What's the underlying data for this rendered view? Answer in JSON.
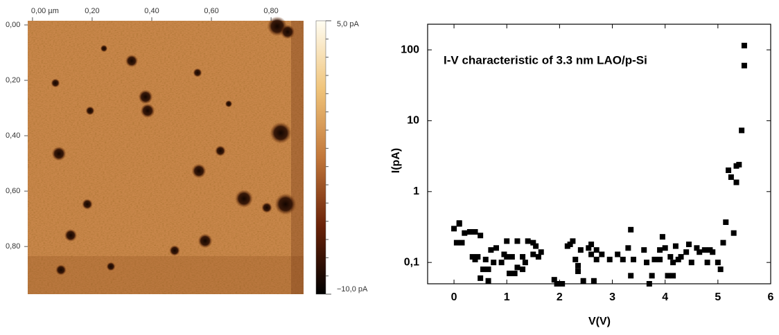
{
  "chart_data": [
    {
      "type": "image",
      "xlim": [
        -0.016,
        0.909
      ],
      "ylim": [
        -0.015,
        0.972
      ],
      "y_inverted": true,
      "xticks": [
        {
          "value": 0,
          "label": "0,00 µm"
        },
        {
          "value": 0.2,
          "label": "0,20"
        },
        {
          "value": 0.4,
          "label": "0,40"
        },
        {
          "value": 0.6,
          "label": "0,60"
        },
        {
          "value": 0.8,
          "label": "0,80"
        }
      ],
      "yticks": [
        {
          "value": 0,
          "label": "0,00"
        },
        {
          "value": 0.2,
          "label": "0,20"
        },
        {
          "value": 0.4,
          "label": "0,40"
        },
        {
          "value": 0.6,
          "label": "0,60"
        },
        {
          "value": 0.8,
          "label": "0,80"
        }
      ],
      "colorbar": {
        "lim": [
          -10,
          5
        ],
        "ticks": [
          {
            "value": 5,
            "label": "5,0 pA"
          },
          {
            "value": -10,
            "label": "−10,0 pA"
          }
        ]
      }
    },
    {
      "type": "scatter",
      "title": "I-V characteristic of 3.3 nm LAO/p-Si",
      "x_label": "V(V)",
      "y_label": "I(pA)",
      "color": "#000000",
      "log_y": true,
      "xlim": [
        -0.5,
        6
      ],
      "ylim": [
        0.05,
        230
      ],
      "xticks": [
        0,
        1,
        2,
        3,
        4,
        5,
        6
      ],
      "yticks": [
        {
          "value": 0.1,
          "label": "0,1"
        },
        1,
        10,
        100
      ],
      "x": [
        0.0,
        0.05,
        0.1,
        0.1,
        0.15,
        0.2,
        0.3,
        0.35,
        0.4,
        0.4,
        0.45,
        0.5,
        0.5,
        0.55,
        0.6,
        0.65,
        0.65,
        0.7,
        0.75,
        0.8,
        0.9,
        0.95,
        1.0,
        1.0,
        1.05,
        1.1,
        1.15,
        1.2,
        1.2,
        1.3,
        1.3,
        1.35,
        1.4,
        1.5,
        1.5,
        1.55,
        1.6,
        1.65,
        1.9,
        1.95,
        2.05,
        2.15,
        2.2,
        2.25,
        2.3,
        2.35,
        2.35,
        2.4,
        2.45,
        2.55,
        2.6,
        2.6,
        2.65,
        2.7,
        2.7,
        2.8,
        2.95,
        3.1,
        3.2,
        3.3,
        3.35,
        3.35,
        3.4,
        3.6,
        3.65,
        3.7,
        3.75,
        3.8,
        3.9,
        3.9,
        3.95,
        4.0,
        4.05,
        4.1,
        4.15,
        4.15,
        4.2,
        4.25,
        4.3,
        4.4,
        4.45,
        4.5,
        4.6,
        4.65,
        4.75,
        4.8,
        4.85,
        4.9,
        5.0,
        5.05,
        5.1,
        5.15,
        5.2,
        5.25,
        5.3,
        5.35,
        5.35,
        5.4,
        5.45,
        5.5,
        5.5
      ],
      "values": [
        0.3,
        0.19,
        0.35,
        0.36,
        0.19,
        0.26,
        0.27,
        0.12,
        0.27,
        0.11,
        0.12,
        0.24,
        0.06,
        0.08,
        0.11,
        0.055,
        0.08,
        0.15,
        0.1,
        0.16,
        0.1,
        0.13,
        0.2,
        0.12,
        0.07,
        0.12,
        0.07,
        0.2,
        0.085,
        0.12,
        0.08,
        0.1,
        0.2,
        0.19,
        0.13,
        0.17,
        0.12,
        0.14,
        0.057,
        0.05,
        0.05,
        0.17,
        0.18,
        0.2,
        0.11,
        0.075,
        0.09,
        0.15,
        0.055,
        0.16,
        0.13,
        0.18,
        0.055,
        0.15,
        0.11,
        0.13,
        0.11,
        0.13,
        0.11,
        0.16,
        0.29,
        0.065,
        0.11,
        0.15,
        0.1,
        0.05,
        0.065,
        0.11,
        0.15,
        0.11,
        0.23,
        0.16,
        0.065,
        0.12,
        0.1,
        0.065,
        0.17,
        0.11,
        0.12,
        0.14,
        0.18,
        0.1,
        0.16,
        0.14,
        0.15,
        0.1,
        0.15,
        0.14,
        0.1,
        0.08,
        0.19,
        0.37,
        2.0,
        1.6,
        0.26,
        2.3,
        1.35,
        2.4,
        7.3,
        60,
        115
      ]
    }
  ]
}
